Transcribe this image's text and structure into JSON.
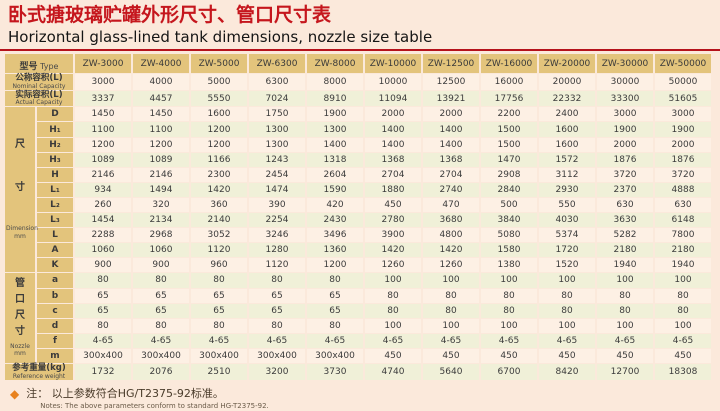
{
  "title": {
    "zh": "卧式搪玻璃贮罐外形尺寸、管口尺寸表",
    "en": "Horizontal glass-lined tank dimensions, nozzle size table"
  },
  "colors": {
    "title_red": "#c5161d",
    "divider_red": "#b5121b",
    "header_tan": "#e3c47c",
    "row_pink": "#fdf0e4",
    "row_green": "#f0f0d8",
    "background": "#fbe9db",
    "note_diamond_orange": "#e8821e"
  },
  "table": {
    "type_header": {
      "zh": "型号",
      "en": "Type"
    },
    "columns": [
      "ZW-3000",
      "ZW-4000",
      "ZW-5000",
      "ZW-6300",
      "ZW-8000",
      "ZW-10000",
      "ZW-12500",
      "ZW-16000",
      "ZW-20000",
      "ZW-30000",
      "ZW-50000"
    ],
    "capacity_rows": [
      {
        "label_zh": "公称容积(L)",
        "label_en": "Nominal Capacity",
        "values": [
          "3000",
          "4000",
          "5000",
          "6300",
          "8000",
          "10000",
          "12500",
          "16000",
          "20000",
          "30000",
          "50000"
        ]
      },
      {
        "label_zh": "实际容积(L)",
        "label_en": "Actual Capacity",
        "values": [
          "3337",
          "4457",
          "5550",
          "7024",
          "8910",
          "11094",
          "13921",
          "17756",
          "22332",
          "33300",
          "51605"
        ]
      }
    ],
    "dimension_group": {
      "label_zh": "尺寸",
      "label_en": "Dimension mm",
      "rows": [
        {
          "label": "D",
          "values": [
            "1450",
            "1450",
            "1600",
            "1750",
            "1900",
            "2000",
            "2000",
            "2200",
            "2400",
            "3000",
            "3000"
          ]
        },
        {
          "label": "H₁",
          "values": [
            "1100",
            "1100",
            "1200",
            "1300",
            "1300",
            "1400",
            "1400",
            "1500",
            "1600",
            "1900",
            "1900"
          ]
        },
        {
          "label": "H₂",
          "values": [
            "1200",
            "1200",
            "1200",
            "1300",
            "1400",
            "1400",
            "1400",
            "1500",
            "1600",
            "2000",
            "2000"
          ]
        },
        {
          "label": "H₃",
          "values": [
            "1089",
            "1089",
            "1166",
            "1243",
            "1318",
            "1368",
            "1368",
            "1470",
            "1572",
            "1876",
            "1876"
          ]
        },
        {
          "label": "H",
          "values": [
            "2146",
            "2146",
            "2300",
            "2454",
            "2604",
            "2704",
            "2704",
            "2908",
            "3112",
            "3720",
            "3720"
          ]
        },
        {
          "label": "L₁",
          "values": [
            "934",
            "1494",
            "1420",
            "1474",
            "1590",
            "1880",
            "2740",
            "2840",
            "2930",
            "2370",
            "4888"
          ]
        },
        {
          "label": "L₂",
          "values": [
            "260",
            "320",
            "360",
            "390",
            "420",
            "450",
            "470",
            "500",
            "550",
            "630",
            "630"
          ]
        },
        {
          "label": "L₃",
          "values": [
            "1454",
            "2134",
            "2140",
            "2254",
            "2430",
            "2780",
            "3680",
            "3840",
            "4030",
            "3630",
            "6148"
          ]
        },
        {
          "label": "L",
          "values": [
            "2288",
            "2968",
            "3052",
            "3246",
            "3496",
            "3900",
            "4800",
            "5080",
            "5374",
            "5282",
            "7800"
          ]
        },
        {
          "label": "A",
          "values": [
            "1060",
            "1060",
            "1120",
            "1280",
            "1360",
            "1420",
            "1420",
            "1580",
            "1720",
            "2180",
            "2180"
          ]
        },
        {
          "label": "K",
          "values": [
            "900",
            "900",
            "960",
            "1120",
            "1200",
            "1260",
            "1260",
            "1380",
            "1520",
            "1940",
            "1940"
          ]
        }
      ]
    },
    "nozzle_group": {
      "label_zh": "管口尺寸",
      "label_en": "Nozzle mm",
      "rows": [
        {
          "label": "a",
          "values": [
            "80",
            "80",
            "80",
            "80",
            "80",
            "100",
            "100",
            "100",
            "100",
            "100",
            "100"
          ]
        },
        {
          "label": "b",
          "values": [
            "65",
            "65",
            "65",
            "65",
            "65",
            "80",
            "80",
            "80",
            "80",
            "80",
            "80"
          ]
        },
        {
          "label": "c",
          "values": [
            "65",
            "65",
            "65",
            "65",
            "65",
            "80",
            "80",
            "80",
            "80",
            "80",
            "80"
          ]
        },
        {
          "label": "d",
          "values": [
            "80",
            "80",
            "80",
            "80",
            "80",
            "100",
            "100",
            "100",
            "100",
            "100",
            "100"
          ]
        },
        {
          "label": "f",
          "values": [
            "4-65",
            "4-65",
            "4-65",
            "4-65",
            "4-65",
            "4-65",
            "4-65",
            "4-65",
            "4-65",
            "4-65",
            "4-65"
          ]
        },
        {
          "label": "m",
          "values": [
            "300x400",
            "300x400",
            "300x400",
            "300x400",
            "300x400",
            "450",
            "450",
            "450",
            "450",
            "450",
            "450"
          ]
        }
      ]
    },
    "weight_row": {
      "label_zh": "参考重量(kg)",
      "label_en": "Reference weight",
      "values": [
        "1732",
        "2076",
        "2510",
        "3200",
        "3730",
        "4740",
        "5640",
        "6700",
        "8420",
        "12700",
        "18308"
      ]
    }
  },
  "note": {
    "diamond": "◆",
    "zh": "注： 以上参数符合HG/T2375-92标准。",
    "en": "Notes: The above parameters conform to standard HG-T2375-92."
  }
}
